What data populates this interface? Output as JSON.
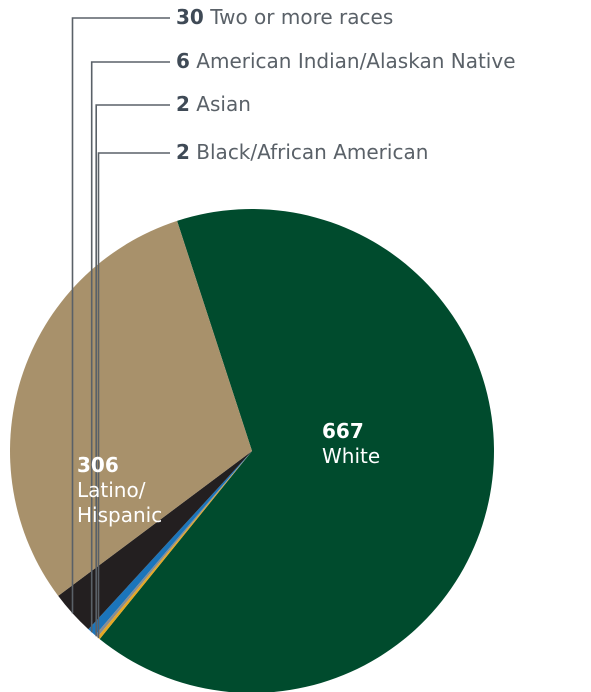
{
  "chart_data": {
    "type": "pie",
    "start_angle_deg": 129,
    "direction": "clockwise",
    "slices": [
      {
        "name": "Black/African American",
        "value": 2,
        "color": "#E7A823",
        "label_position": "callout"
      },
      {
        "name": "Asian",
        "value": 2,
        "color": "#8A8C8E",
        "label_position": "callout"
      },
      {
        "name": "American Indian/Alaskan Native",
        "value": 6,
        "color": "#1B75BB",
        "label_position": "callout"
      },
      {
        "name": "Two or more races",
        "value": 30,
        "color": "#231F20",
        "label_position": "callout"
      },
      {
        "name": "Latino/\nHispanic",
        "value": 306,
        "color": "#A8916B",
        "label_position": "inside"
      },
      {
        "name": "White",
        "value": 667,
        "color": "#004B2D",
        "label_position": "inside"
      }
    ],
    "render_order": [
      5,
      0,
      1,
      2,
      3,
      4
    ]
  },
  "colors": {
    "label_text": "#5A6168",
    "label_bold": "#3F4A56",
    "inside_text": "#ffffff",
    "leader_line": "#5A6168"
  }
}
